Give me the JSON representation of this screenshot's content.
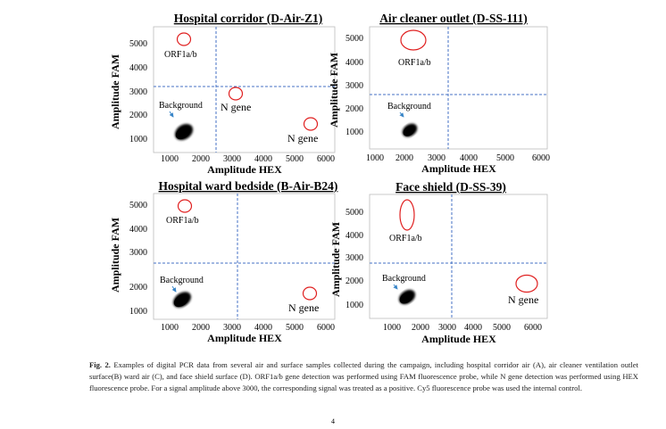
{
  "figure": {
    "panels": [
      {
        "id": "A",
        "title": "Hospital corridor (D-Air-Z1)",
        "ylabel": "Amplitude FAM",
        "xlabel": "Amplitude HEX",
        "yticks": [
          "5000",
          "4000",
          "3000",
          "2000",
          "1000"
        ],
        "xticks": [
          "1000",
          "2000",
          "3000",
          "4000",
          "5000",
          "6000"
        ],
        "labels": {
          "orf": "ORF1a/b",
          "background": "Background",
          "ngene_mid": "N gene",
          "ngene_right": "N gene"
        }
      },
      {
        "id": "B",
        "title": "Air cleaner outlet (D-SS-111)",
        "ylabel": "Amplitude FAM",
        "xlabel": "Amplitude HEX",
        "yticks": [
          "5000",
          "4000",
          "3000",
          "2000",
          "1000"
        ],
        "xticks": [
          "1000",
          "2000",
          "3000",
          "4000",
          "5000",
          "6000"
        ],
        "labels": {
          "orf": "ORF1a/b",
          "background": "Background"
        }
      },
      {
        "id": "C",
        "title": "Hospital ward bedside (B-Air-B24)",
        "ylabel": "Amplitude FAM",
        "xlabel": "Amplitude HEX",
        "yticks": [
          "5000",
          "4000",
          "3000",
          "2000",
          "1000"
        ],
        "xticks": [
          "1000",
          "2000",
          "3000",
          "4000",
          "5000",
          "6000"
        ],
        "labels": {
          "orf": "ORF1a/b",
          "background": "Background",
          "ngene": "N gene"
        }
      },
      {
        "id": "D",
        "title": "Face shield (D-SS-39)",
        "ylabel": "Amplitude FAM",
        "xlabel": "Amplitude HEX",
        "yticks": [
          "5000",
          "4000",
          "3000",
          "2000",
          "1000"
        ],
        "xticks": [
          "1000",
          "2000",
          "3000",
          "4000",
          "5000",
          "6000"
        ],
        "labels": {
          "orf": "ORF1a/b",
          "background": "Background",
          "ngene": "N gene"
        }
      }
    ]
  },
  "caption": {
    "label": "Fig. 2.",
    "text": "Examples of digital PCR data from several air and surface samples collected during the campaign, including hospital corridor air (A), air cleaner ventilation outlet surface(B) ward air (C), and face shield surface (D). ORF1a/b gene detection was performed using FAM fluorescence probe, while N gene detection was performed using HEX fluorescence probe. For a signal amplitude above 3000, the corresponding signal was treated as a positive. Cy5 fluorescence probe was used the internal control."
  },
  "page_number": "4",
  "colors": {
    "threshold": "#4472c4",
    "circle": "#e02020",
    "arrow": "#3a86c8",
    "dots": "#000000"
  }
}
